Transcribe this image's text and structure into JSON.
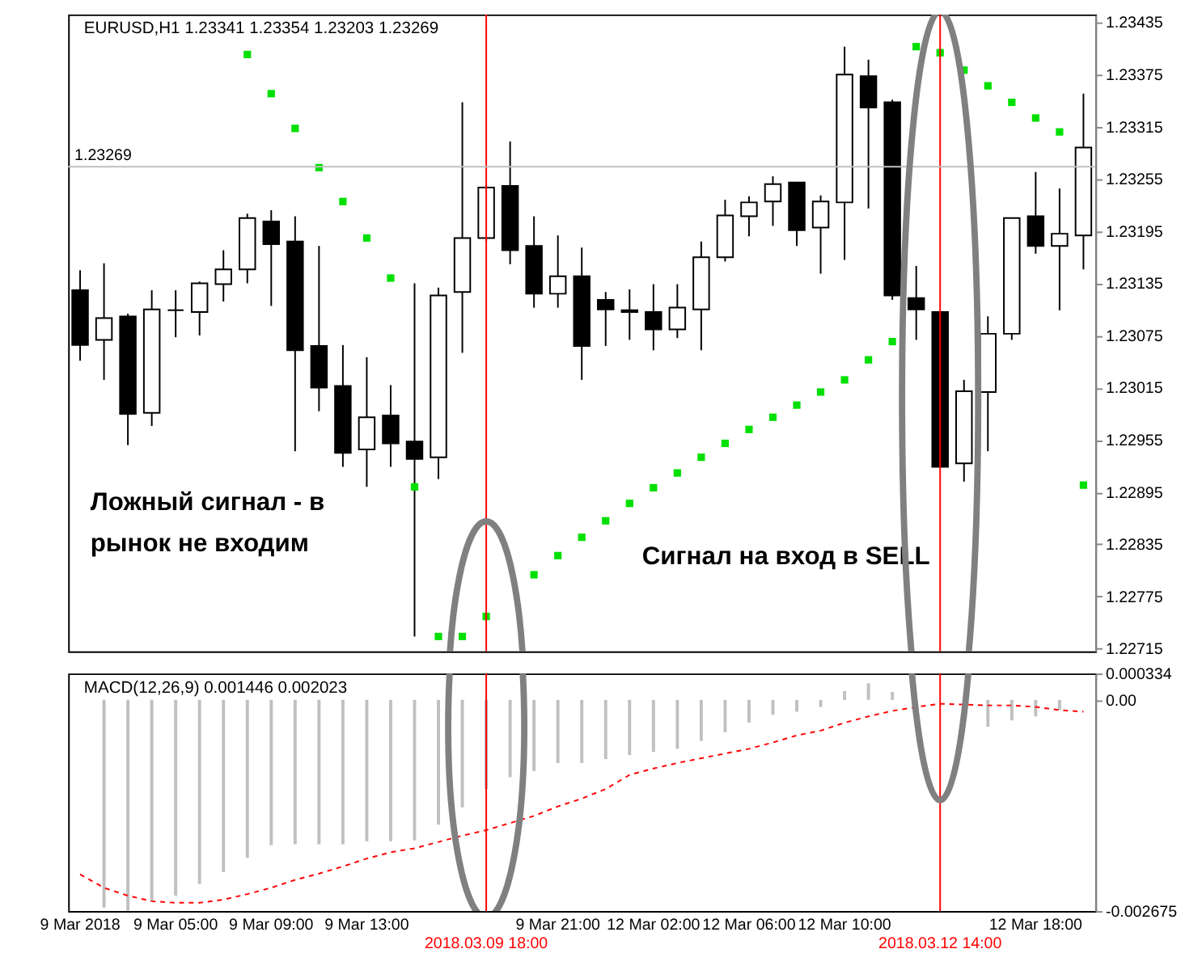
{
  "chart_data": [
    {
      "type": "candlestick",
      "title": "EURUSD,H1  1.23341 1.23354 1.23203 1.23269",
      "categories": [
        "9 Mar 2018",
        null,
        null,
        null,
        "9 Mar 05:00",
        null,
        null,
        null,
        "9 Mar 09:00",
        null,
        null,
        null,
        "9 Mar 13:00",
        null,
        null,
        null,
        null,
        "2018.03.09 18:00",
        null,
        null,
        "9 Mar 21:00",
        null,
        null,
        null,
        "12 Mar 02:00",
        null,
        null,
        null,
        "12 Mar 06:00",
        null,
        null,
        null,
        "12 Mar 10:00",
        null,
        null,
        null,
        "2018.03.12 14:00",
        null,
        null,
        null,
        "12 Mar 18:00",
        null,
        null
      ],
      "ohlc": [
        [
          1.23127,
          1.2315,
          1.23046,
          1.23064
        ],
        [
          1.2307,
          1.23158,
          1.23024,
          1.23095
        ],
        [
          1.23097,
          1.231,
          1.22949,
          1.22985
        ],
        [
          1.22986,
          1.23127,
          1.22971,
          1.23105
        ],
        [
          1.23104,
          1.23127,
          1.23073,
          1.23104
        ],
        [
          1.23102,
          1.23137,
          1.23075,
          1.23135
        ],
        [
          1.23134,
          1.23173,
          1.23114,
          1.23151
        ],
        [
          1.23151,
          1.23215,
          1.23135,
          1.2321
        ],
        [
          1.23206,
          1.23219,
          1.23109,
          1.2318
        ],
        [
          1.23183,
          1.23212,
          1.22942,
          1.23058
        ],
        [
          1.23063,
          1.23178,
          1.22988,
          1.23015
        ],
        [
          1.23017,
          1.23064,
          1.22924,
          1.2294
        ],
        [
          1.22944,
          1.2305,
          1.22901,
          1.22981
        ],
        [
          1.22983,
          1.23018,
          1.22924,
          1.22951
        ],
        [
          1.22953,
          1.23135,
          1.22729,
          1.22933
        ],
        [
          1.22935,
          1.2313,
          1.2291,
          1.23121
        ],
        [
          1.23125,
          1.23343,
          1.23055,
          1.23187
        ],
        [
          1.23187,
          1.23249,
          1.23183,
          1.23245
        ],
        [
          1.23247,
          1.23298,
          1.23157,
          1.23173
        ],
        [
          1.23178,
          1.23212,
          1.23107,
          1.23123
        ],
        [
          1.23123,
          1.2319,
          1.23107,
          1.23143
        ],
        [
          1.23143,
          1.23176,
          1.23024,
          1.23063
        ],
        [
          1.23116,
          1.23125,
          1.23063,
          1.23105
        ],
        [
          1.23104,
          1.23128,
          1.2307,
          1.23102
        ],
        [
          1.23102,
          1.23134,
          1.23058,
          1.23082
        ],
        [
          1.23082,
          1.23134,
          1.23072,
          1.23107
        ],
        [
          1.23105,
          1.23183,
          1.23058,
          1.23165
        ],
        [
          1.23165,
          1.23231,
          1.2316,
          1.23213
        ],
        [
          1.23212,
          1.23235,
          1.23189,
          1.23228
        ],
        [
          1.23229,
          1.23258,
          1.23201,
          1.23249
        ],
        [
          1.23251,
          1.23251,
          1.23178,
          1.23196
        ],
        [
          1.23199,
          1.23236,
          1.23146,
          1.23229
        ],
        [
          1.23228,
          1.23407,
          1.23162,
          1.23375
        ],
        [
          1.23373,
          1.23392,
          1.23221,
          1.23337
        ],
        [
          1.23343,
          1.23346,
          1.23116,
          1.23121
        ],
        [
          1.23118,
          1.23155,
          1.2307,
          1.23105
        ],
        [
          1.23102,
          1.23102,
          1.22924,
          1.22924
        ],
        [
          1.22928,
          1.23024,
          1.22907,
          1.23011
        ],
        [
          1.2301,
          1.23097,
          1.22942,
          1.23077
        ],
        [
          1.23077,
          1.2321,
          1.2307,
          1.2321
        ],
        [
          1.23212,
          1.23263,
          1.23169,
          1.23178
        ],
        [
          1.23178,
          1.23244,
          1.23104,
          1.23192
        ],
        [
          1.2319,
          1.23353,
          1.23151,
          1.23291
        ]
      ],
      "series": [
        {
          "type": "scatter",
          "color": "#00e000",
          "marker": "square",
          "values": [
            null,
            null,
            null,
            null,
            null,
            null,
            null,
            1.23398,
            1.23353,
            1.23313,
            1.23268,
            1.23229,
            1.23187,
            1.23141,
            1.22901,
            1.22729,
            1.22729,
            1.22752,
            null,
            1.228,
            1.22822,
            1.22843,
            1.22862,
            1.22882,
            1.229,
            1.22917,
            1.22935,
            1.22951,
            1.22967,
            1.22981,
            1.22995,
            1.2301,
            1.23024,
            1.23047,
            1.23068,
            1.23407,
            1.234,
            1.2338,
            1.23362,
            1.23343,
            1.23325,
            1.23309,
            1.22903
          ]
        }
      ],
      "ylim": [
        1.22712,
        1.23444
      ],
      "yticks": [
        1.22715,
        1.22775,
        1.22835,
        1.22895,
        1.22955,
        1.23015,
        1.23075,
        1.23135,
        1.23195,
        1.23255,
        1.23315,
        1.23375,
        1.23435
      ],
      "tick_labels": "y",
      "grid": false,
      "legend": false,
      "ref_lines": [
        {
          "axis": "x",
          "value": "2018.03.09 18:00",
          "color": "#ff0000"
        },
        {
          "axis": "x",
          "value": "2018.03.12 14:00",
          "color": "#ff0000"
        },
        {
          "axis": "y",
          "value": 1.23269,
          "label": "1.23269",
          "color": "#c0c0c0"
        }
      ],
      "annotations": [
        "Ложный сигнал -  в\nрынок  не  входим",
        "Сигнал на  вход в SELL"
      ]
    },
    {
      "type": "bar",
      "title": "MACD(12,26,9) 0.001446 0.002023",
      "categories": [
        "9 Mar 2018",
        null,
        null,
        null,
        "9 Mar 05:00",
        null,
        null,
        null,
        "9 Mar 09:00",
        null,
        null,
        null,
        "9 Mar 13:00",
        null,
        null,
        null,
        null,
        "2018.03.09 18:00",
        null,
        null,
        "9 Mar 21:00",
        null,
        null,
        null,
        "12 Mar 02:00",
        null,
        null,
        null,
        "12 Mar 06:00",
        null,
        null,
        null,
        "12 Mar 10:00",
        null,
        null,
        null,
        "2018.03.12 14:00",
        null,
        null,
        null,
        "12 Mar 18:00",
        null,
        null
      ],
      "series": [
        {
          "type": "bar",
          "color": "#c0c0c0",
          "values": [
            null,
            -0.00263,
            -0.00267,
            -0.00255,
            -0.00248,
            -0.00233,
            -0.00218,
            -0.002,
            -0.00184,
            -0.00183,
            -0.00183,
            -0.00183,
            -0.00179,
            -0.00179,
            -0.00178,
            -0.00158,
            -0.00136,
            -0.00113,
            -0.00098,
            -0.0009,
            -0.0008,
            -0.0008,
            -0.00075,
            -0.0007,
            -0.00066,
            -0.00062,
            -0.00052,
            -0.00041,
            -0.00029,
            -0.00019,
            -0.00015,
            -9e-05,
            0.00011,
            0.00021,
            0.0001,
            null,
            null,
            null,
            -0.00034,
            -0.00026,
            -0.00021,
            -0.00013,
            null
          ]
        },
        {
          "type": "line",
          "color": "#ff0000",
          "line_style": "dashed",
          "values": [
            -0.00221,
            -0.00238,
            -0.00248,
            -0.00255,
            -0.00257,
            -0.00257,
            -0.00253,
            -0.00246,
            -0.00238,
            -0.00228,
            -0.0022,
            -0.00211,
            -0.00201,
            -0.00193,
            -0.00188,
            -0.0018,
            -0.00172,
            -0.00165,
            -0.00156,
            -0.00147,
            -0.00135,
            -0.00125,
            -0.00113,
            -0.00095,
            -0.00087,
            -0.0008,
            -0.00074,
            -0.00068,
            -0.00062,
            -0.00054,
            -0.00045,
            -0.00039,
            -0.00029,
            -0.00021,
            -0.00014,
            -9e-05,
            -5e-05,
            -6e-05,
            -7e-05,
            -7e-05,
            -9e-05,
            -0.00013,
            -0.00015
          ]
        }
      ],
      "ylim": [
        -0.002675,
        0.000334
      ],
      "yticks": [
        0.000334,
        {
          "value": 0,
          "label": "0.00"
        },
        -0.002675
      ],
      "grid": false,
      "legend": false,
      "ref_lines": [
        {
          "axis": "x",
          "value": "2018.03.09 18:00",
          "color": "#ff0000"
        },
        {
          "axis": "x",
          "value": "2018.03.12 14:00",
          "color": "#ff0000"
        }
      ]
    }
  ]
}
